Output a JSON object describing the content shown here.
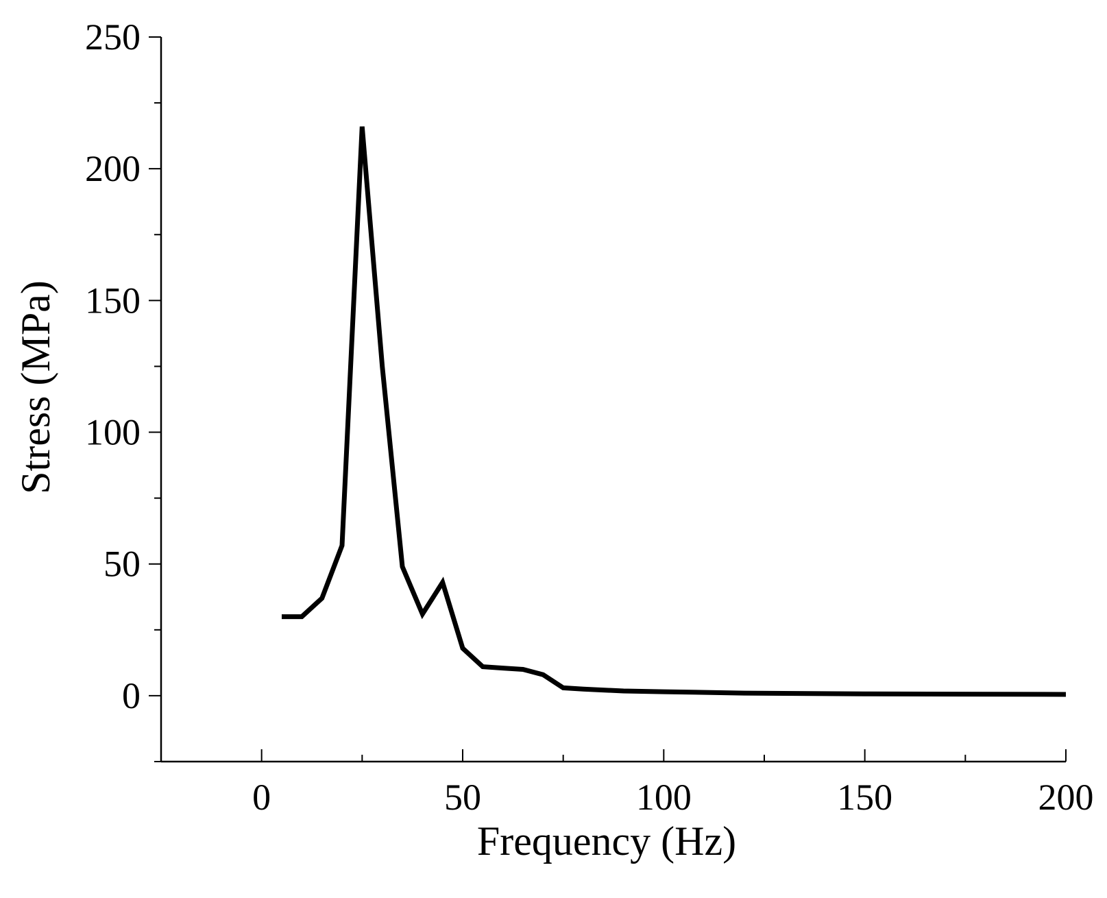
{
  "chart_data": {
    "type": "line",
    "title": "",
    "xlabel": "Frequency (Hz)",
    "ylabel": "Stress (MPa)",
    "xlim": [
      -25,
      200
    ],
    "ylim": [
      -25,
      250
    ],
    "xticks": [
      0,
      50,
      100,
      150,
      200
    ],
    "yticks": [
      0,
      50,
      100,
      150,
      200,
      250
    ],
    "x_minor_step": 25,
    "y_minor_step": 25,
    "grid": false,
    "legend": "none",
    "line_color": "#000000",
    "series": [
      {
        "x": [
          5,
          10,
          15,
          20,
          25,
          30,
          35,
          40,
          45,
          50,
          55,
          60,
          65,
          70,
          75,
          80,
          90,
          100,
          120,
          150,
          200
        ],
        "values": [
          30,
          30,
          37,
          57,
          216,
          125,
          49,
          31,
          43,
          18,
          11,
          10.5,
          10,
          8,
          3,
          2.5,
          1.8,
          1.5,
          1,
          0.7,
          0.5
        ]
      }
    ]
  }
}
